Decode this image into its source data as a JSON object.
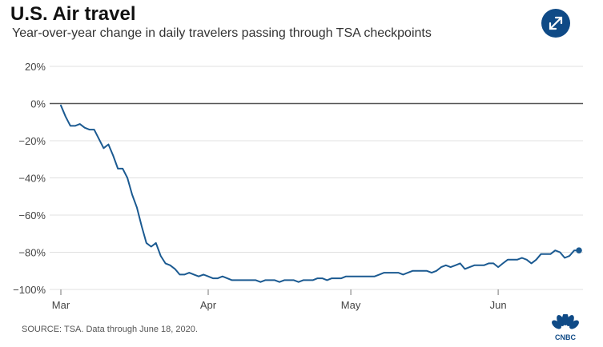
{
  "header": {
    "title": "U.S. Air travel",
    "subtitle": "Year-over-year change in daily travelers passing through TSA checkpoints"
  },
  "footer": {
    "source": "SOURCE: TSA. Data through June 18, 2020.",
    "logo_text": "CNBC"
  },
  "icons": {
    "expand": "expand-arrows-icon",
    "logo": "cnbc-peacock-logo"
  },
  "colors": {
    "line": "#1b5a91",
    "button": "#0f4a86",
    "grid": "#e0e0e0",
    "zero_line": "#555555"
  },
  "chart_data": {
    "type": "line",
    "title": "U.S. Air travel",
    "subtitle": "Year-over-year change in daily travelers passing through TSA checkpoints",
    "xlabel": "",
    "ylabel": "",
    "ylim": [
      -100,
      20
    ],
    "yticks": [
      20,
      0,
      -20,
      -40,
      -60,
      -80,
      -100
    ],
    "ytick_labels": [
      "20%",
      "0%",
      "−20%",
      "−40%",
      "−60%",
      "−80%",
      "−100%"
    ],
    "x_start": "2020-03-01",
    "x_end": "2020-06-18",
    "xticks": [
      {
        "day": 0,
        "label": "Mar"
      },
      {
        "day": 31,
        "label": "Apr"
      },
      {
        "day": 61,
        "label": "May"
      },
      {
        "day": 92,
        "label": "Jun"
      }
    ],
    "grid": true,
    "end_marker": true,
    "series": [
      {
        "name": "Year-over-year change",
        "x_unit": "days since 2020-03-01",
        "x": [
          0,
          1,
          2,
          3,
          4,
          5,
          6,
          7,
          8,
          9,
          10,
          11,
          12,
          13,
          14,
          15,
          16,
          17,
          18,
          19,
          20,
          21,
          22,
          23,
          24,
          25,
          26,
          27,
          28,
          29,
          30,
          31,
          32,
          33,
          34,
          35,
          36,
          37,
          38,
          39,
          40,
          41,
          42,
          43,
          44,
          45,
          46,
          47,
          48,
          49,
          50,
          51,
          52,
          53,
          54,
          55,
          56,
          57,
          58,
          59,
          60,
          61,
          62,
          63,
          64,
          65,
          66,
          67,
          68,
          69,
          70,
          71,
          72,
          73,
          74,
          75,
          76,
          77,
          78,
          79,
          80,
          81,
          82,
          83,
          84,
          85,
          86,
          87,
          88,
          89,
          90,
          91,
          92,
          93,
          94,
          95,
          96,
          97,
          98,
          99,
          100,
          101,
          102,
          103,
          104,
          105,
          106,
          107,
          108,
          109
        ],
        "values": [
          -1,
          -7,
          -12,
          -12,
          -11,
          -13,
          -14,
          -14,
          -19,
          -24,
          -22,
          -28,
          -35,
          -35,
          -40,
          -49,
          -56,
          -66,
          -75,
          -77,
          -75,
          -82,
          -86,
          -87,
          -89,
          -92,
          -92,
          -91,
          -92,
          -93,
          -92,
          -93,
          -94,
          -94,
          -93,
          -94,
          -95,
          -95,
          -95,
          -95,
          -95,
          -95,
          -96,
          -95,
          -95,
          -95,
          -96,
          -95,
          -95,
          -95,
          -96,
          -95,
          -95,
          -95,
          -94,
          -94,
          -95,
          -94,
          -94,
          -94,
          -93,
          -93,
          -93,
          -93,
          -93,
          -93,
          -93,
          -92,
          -91,
          -91,
          -91,
          -91,
          -92,
          -91,
          -90,
          -90,
          -90,
          -90,
          -91,
          -90,
          -88,
          -87,
          -88,
          -87,
          -86,
          -89,
          -88,
          -87,
          -87,
          -87,
          -86,
          -86,
          -88,
          -86,
          -84,
          -84,
          -84,
          -83,
          -84,
          -86,
          -84,
          -81,
          -81,
          -81,
          -79,
          -80,
          -83,
          -82,
          -79,
          -79
        ]
      }
    ]
  }
}
